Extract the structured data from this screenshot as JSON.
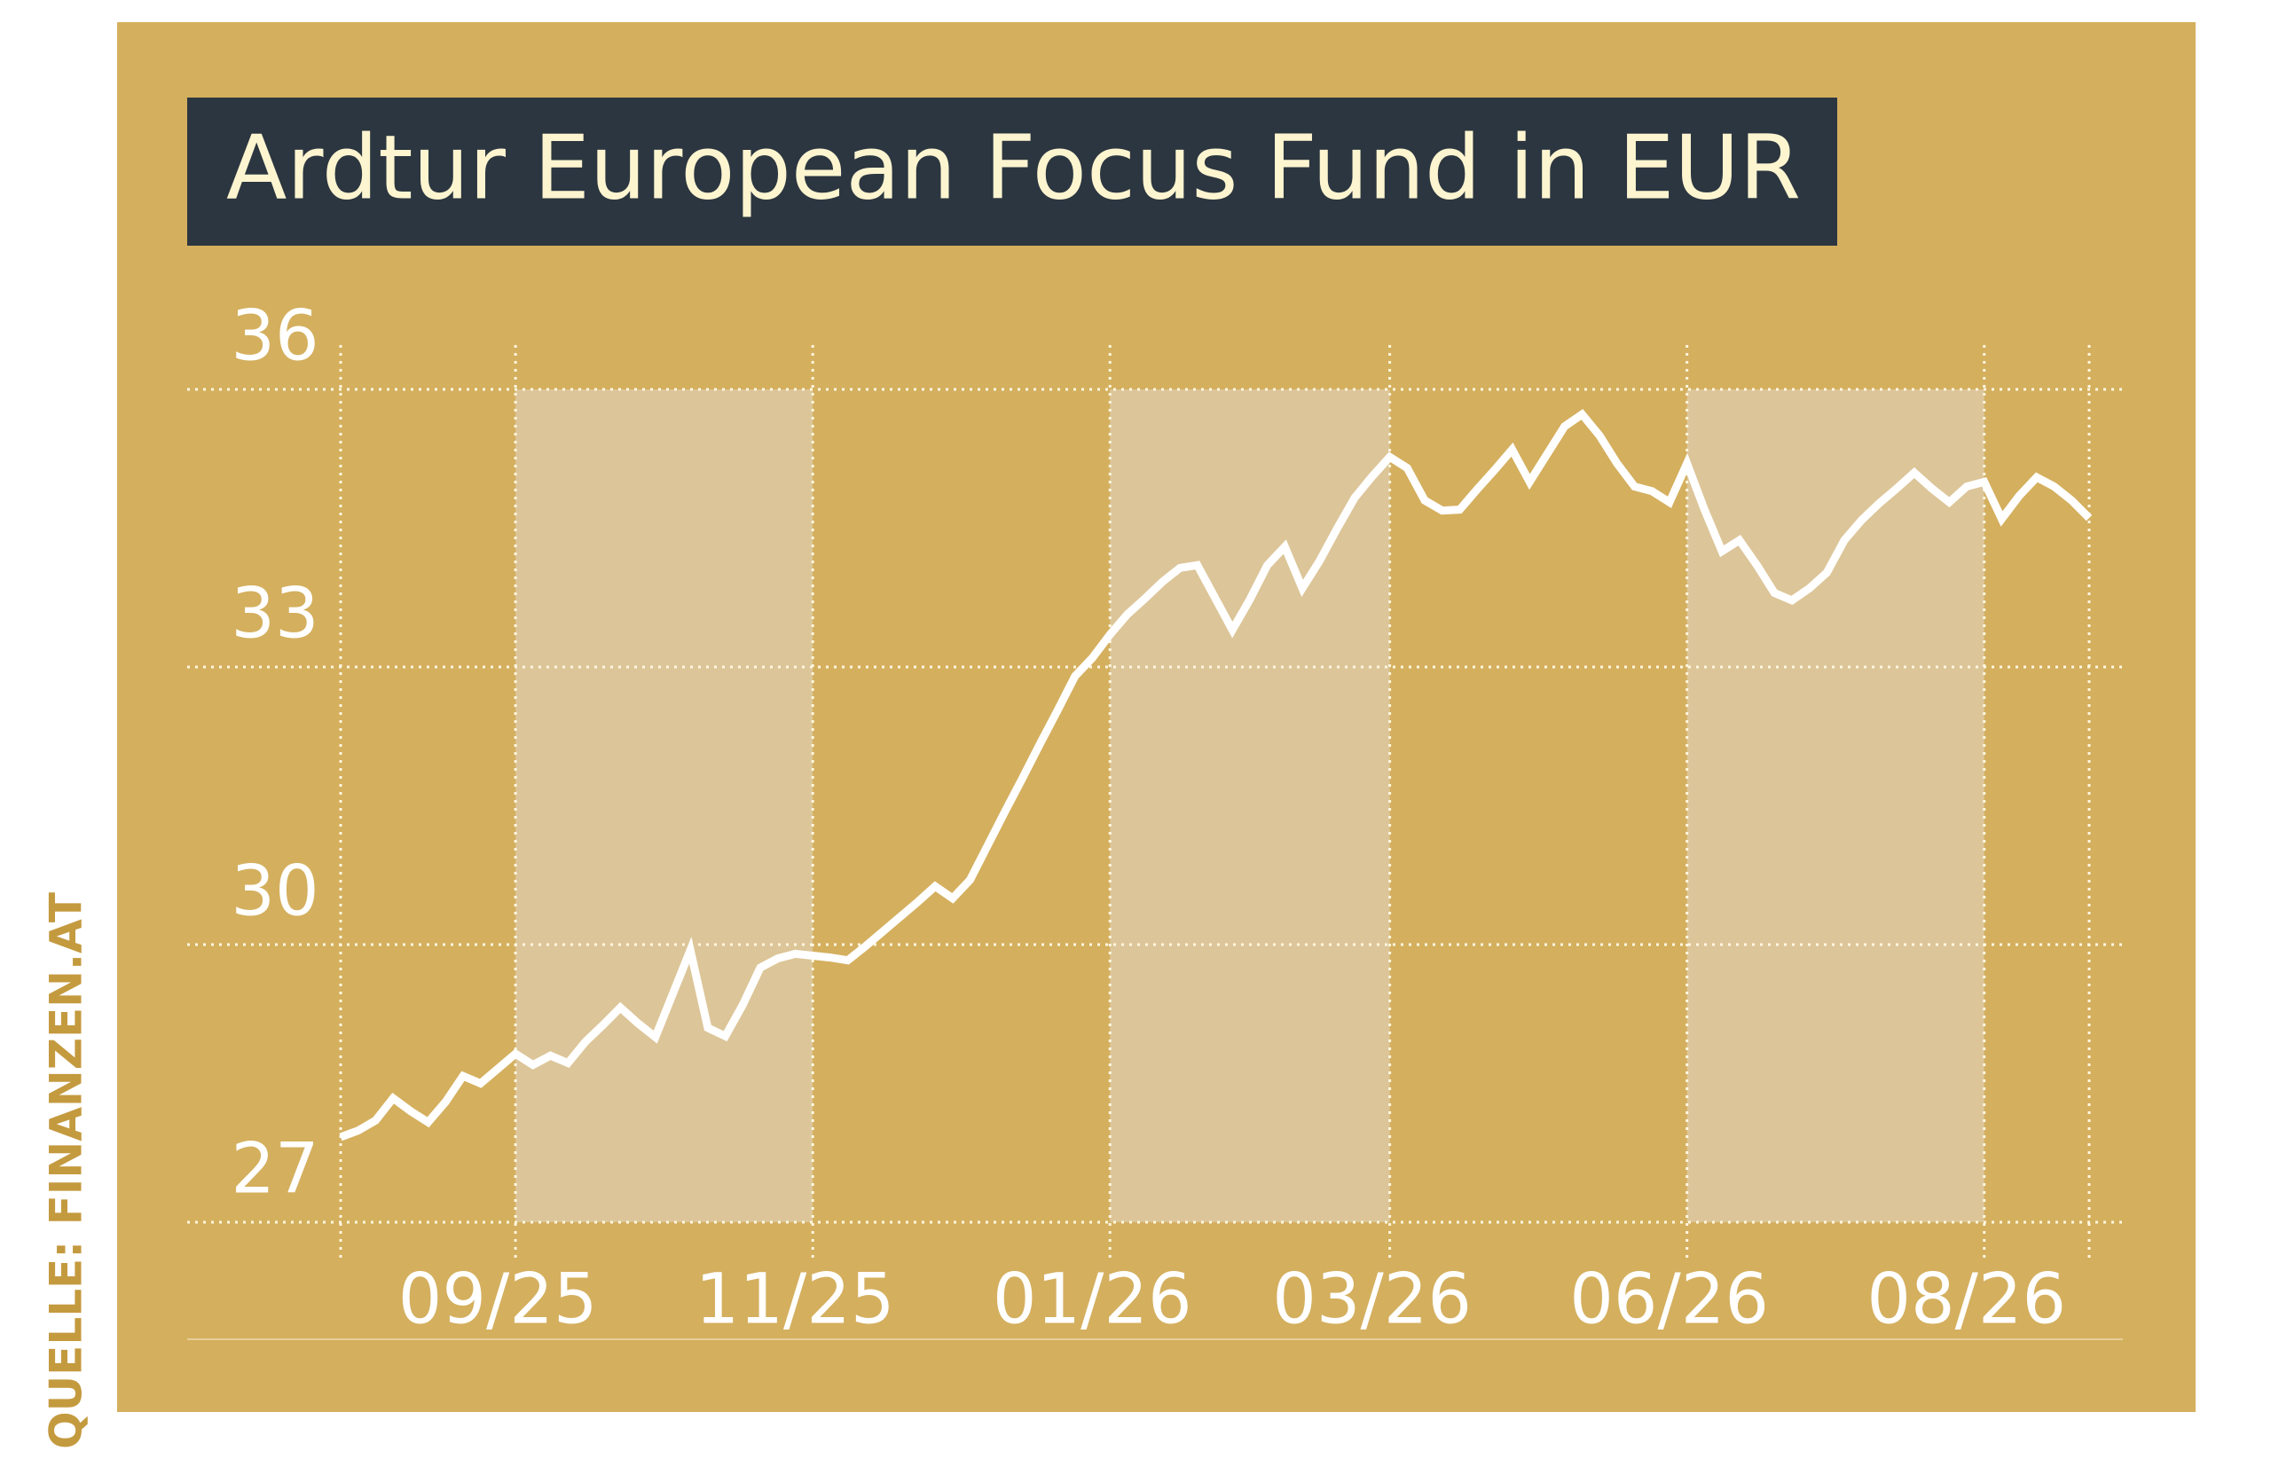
{
  "chart_data": {
    "type": "line",
    "title": "Ardtur European Focus Fund in EUR",
    "source": "QUELLE: FINANZEN.AT",
    "categories": [
      null,
      null,
      null,
      null,
      null,
      null,
      null,
      null,
      null,
      null,
      "09/25",
      null,
      null,
      null,
      null,
      null,
      null,
      null,
      null,
      null,
      null,
      null,
      null,
      null,
      null,
      null,
      null,
      "11/25",
      null,
      null,
      null,
      null,
      null,
      null,
      null,
      null,
      null,
      null,
      null,
      null,
      null,
      null,
      null,
      null,
      "01/26",
      null,
      null,
      null,
      null,
      null,
      null,
      null,
      null,
      null,
      null,
      null,
      null,
      null,
      null,
      null,
      "03/26",
      null,
      null,
      null,
      null,
      null,
      null,
      null,
      null,
      null,
      null,
      null,
      null,
      null,
      null,
      null,
      null,
      "06/26",
      null,
      null,
      null,
      null,
      null,
      null,
      null,
      null,
      null,
      null,
      null,
      null,
      null,
      null,
      null,
      null,
      "08/26",
      null,
      null,
      null,
      null,
      null,
      null
    ],
    "series": [
      {
        "name": "Ardtur European Focus Fund",
        "color": "#ffffff",
        "values": [
          27.92,
          27.99,
          28.1,
          28.34,
          28.2,
          28.08,
          28.3,
          28.58,
          28.5,
          28.66,
          28.82,
          28.7,
          28.8,
          28.72,
          28.95,
          29.13,
          29.32,
          29.15,
          29.0,
          29.47,
          29.94,
          29.1,
          29.01,
          29.35,
          29.75,
          29.85,
          29.9,
          29.88,
          29.86,
          29.83,
          29.98,
          30.14,
          30.3,
          30.46,
          30.63,
          30.5,
          30.7,
          31.07,
          31.44,
          31.8,
          32.17,
          32.53,
          32.9,
          33.1,
          33.35,
          33.57,
          33.74,
          33.92,
          34.07,
          34.1,
          33.75,
          33.4,
          33.73,
          34.1,
          34.3,
          33.85,
          34.15,
          34.5,
          34.83,
          35.06,
          35.27,
          35.15,
          34.8,
          34.69,
          34.7,
          34.92,
          35.13,
          35.35,
          35.0,
          35.3,
          35.6,
          35.73,
          35.5,
          35.2,
          34.95,
          34.9,
          34.78,
          35.2,
          34.7,
          34.25,
          34.37,
          34.1,
          33.8,
          33.72,
          33.85,
          34.02,
          34.37,
          34.59,
          34.77,
          34.93,
          35.1,
          34.93,
          34.78,
          34.95,
          35.0,
          34.6,
          34.85,
          35.05,
          34.95,
          34.8,
          34.61
        ]
      }
    ],
    "ylim": [
      27,
      36
    ],
    "yticks": [
      27,
      30,
      33,
      36
    ],
    "grid": true
  }
}
